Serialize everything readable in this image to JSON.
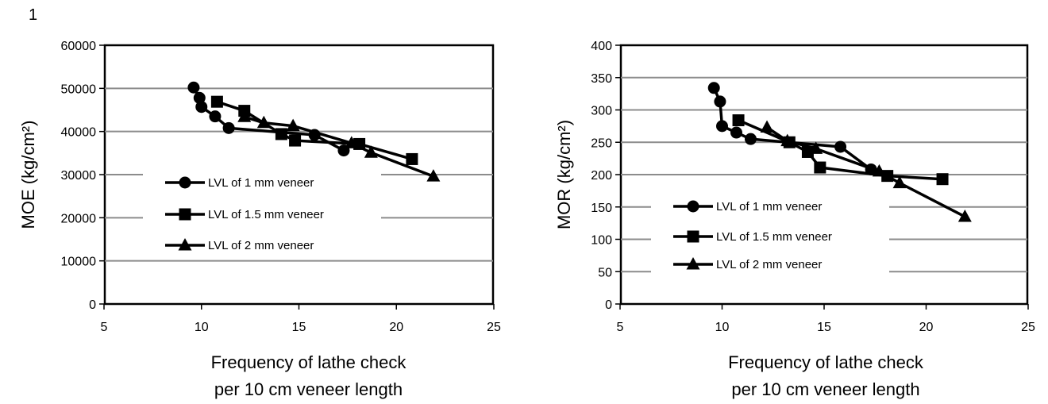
{
  "page_number": "1",
  "chart_data": [
    {
      "type": "line",
      "ylabel": "MOE (kg/cm²)",
      "xlabel_lines": [
        "Frequency of lathe check",
        "per 10 cm veneer length"
      ],
      "xlim": [
        5,
        25
      ],
      "ylim": [
        0,
        60000
      ],
      "xticks": [
        "5",
        "10",
        "15",
        "20",
        "25"
      ],
      "yticks": [
        "0",
        "10000",
        "20000",
        "30000",
        "40000",
        "50000",
        "60000"
      ],
      "grid": true,
      "legend_position": "lower-left",
      "series": [
        {
          "name": "LVL of 1 mm veneer",
          "marker": "circle",
          "x": [
            9.6,
            9.9,
            10.0,
            10.7,
            11.4,
            15.8,
            17.3
          ],
          "y": [
            50200,
            47800,
            45700,
            43500,
            40800,
            39200,
            35600
          ]
        },
        {
          "name": "LVL of 1.5 mm veneer",
          "marker": "square",
          "x": [
            10.8,
            12.2,
            14.1,
            14.8,
            18.1,
            20.8
          ],
          "y": [
            46900,
            44800,
            39400,
            37900,
            37100,
            33600
          ]
        },
        {
          "name": "LVL of 2 mm veneer",
          "marker": "triangle",
          "x": [
            12.2,
            13.2,
            14.7,
            17.7,
            18.7,
            21.9
          ],
          "y": [
            43400,
            42000,
            41300,
            37300,
            35100,
            29600
          ]
        }
      ]
    },
    {
      "type": "line",
      "ylabel": "MOR (kg/cm²)",
      "xlabel_lines": [
        "Frequency of lathe check",
        "per 10 cm veneer length"
      ],
      "xlim": [
        5,
        25
      ],
      "ylim": [
        0,
        400
      ],
      "xticks": [
        "5",
        "10",
        "15",
        "20",
        "25"
      ],
      "yticks": [
        "0",
        "50",
        "100",
        "150",
        "200",
        "250",
        "300",
        "350",
        "400"
      ],
      "grid": true,
      "legend_position": "lower-left",
      "series": [
        {
          "name": "LVL of 1 mm veneer",
          "marker": "circle",
          "x": [
            9.6,
            9.9,
            10.0,
            10.7,
            11.4,
            15.8,
            17.3
          ],
          "y": [
            334,
            313,
            275,
            265,
            255,
            243,
            208
          ]
        },
        {
          "name": "LVL of 1.5 mm veneer",
          "marker": "square",
          "x": [
            10.8,
            13.3,
            14.2,
            14.8,
            18.1,
            20.8
          ],
          "y": [
            284,
            250,
            235,
            211,
            198,
            193
          ]
        },
        {
          "name": "LVL of 2 mm veneer",
          "marker": "triangle",
          "x": [
            12.2,
            13.2,
            14.6,
            17.7,
            18.7,
            21.9
          ],
          "y": [
            273,
            252,
            240,
            205,
            187,
            135
          ]
        }
      ]
    }
  ]
}
